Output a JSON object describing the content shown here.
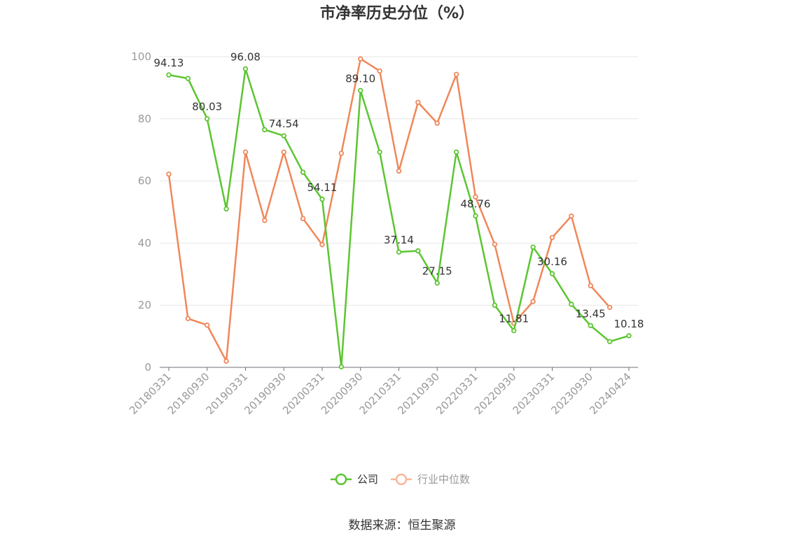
{
  "chart_data": {
    "type": "line",
    "title": "市净率历史分位（%）",
    "source": "数据来源：恒生聚源",
    "ylim": [
      0,
      100
    ],
    "yticks": [
      "0",
      "20",
      "40",
      "60",
      "80",
      "100"
    ],
    "x": [
      "20180331",
      "20180630",
      "20180930",
      "20181231",
      "20190331",
      "20190630",
      "20190930",
      "20191231",
      "20200331",
      "20200630",
      "20200930",
      "20201231",
      "20210331",
      "20210630",
      "20210930",
      "20211231",
      "20220331",
      "20220630",
      "20220930",
      "20221231",
      "20230331",
      "20230630",
      "20230930",
      "20231231",
      "20240424"
    ],
    "xtick_labels": [
      "20180331",
      "20180930",
      "20190331",
      "20190930",
      "20200331",
      "20200930",
      "20210331",
      "20210930",
      "20220331",
      "20220930",
      "20230331",
      "20230930",
      "20240424"
    ],
    "grid": true,
    "legend_position": "bottom",
    "series": [
      {
        "name": "公司",
        "color": "#5cc531",
        "values": [
          94.13,
          93.0,
          80.03,
          51.0,
          96.08,
          76.5,
          74.54,
          62.8,
          54.11,
          0.2,
          89.1,
          69.3,
          37.14,
          37.5,
          27.15,
          69.3,
          48.76,
          20.0,
          11.81,
          38.7,
          30.16,
          20.3,
          13.45,
          8.3,
          10.18
        ],
        "labels": {
          "0": "94.13",
          "2": "80.03",
          "4": "96.08",
          "6": "74.54",
          "8": "54.11",
          "10": "89.10",
          "12": "37.14",
          "14": "27.15",
          "16": "48.76",
          "18": "11.81",
          "20": "30.16",
          "22": "13.45",
          "24": "10.18"
        }
      },
      {
        "name": "行业中位数",
        "color": "#f0875a",
        "values": [
          62.2,
          15.7,
          13.6,
          2.0,
          69.3,
          47.3,
          69.3,
          47.9,
          39.5,
          68.9,
          99.3,
          95.4,
          63.2,
          85.3,
          78.6,
          94.3,
          54.9,
          39.6,
          14.2,
          21.2,
          41.8,
          48.7,
          26.3,
          19.3,
          null
        ]
      }
    ]
  }
}
